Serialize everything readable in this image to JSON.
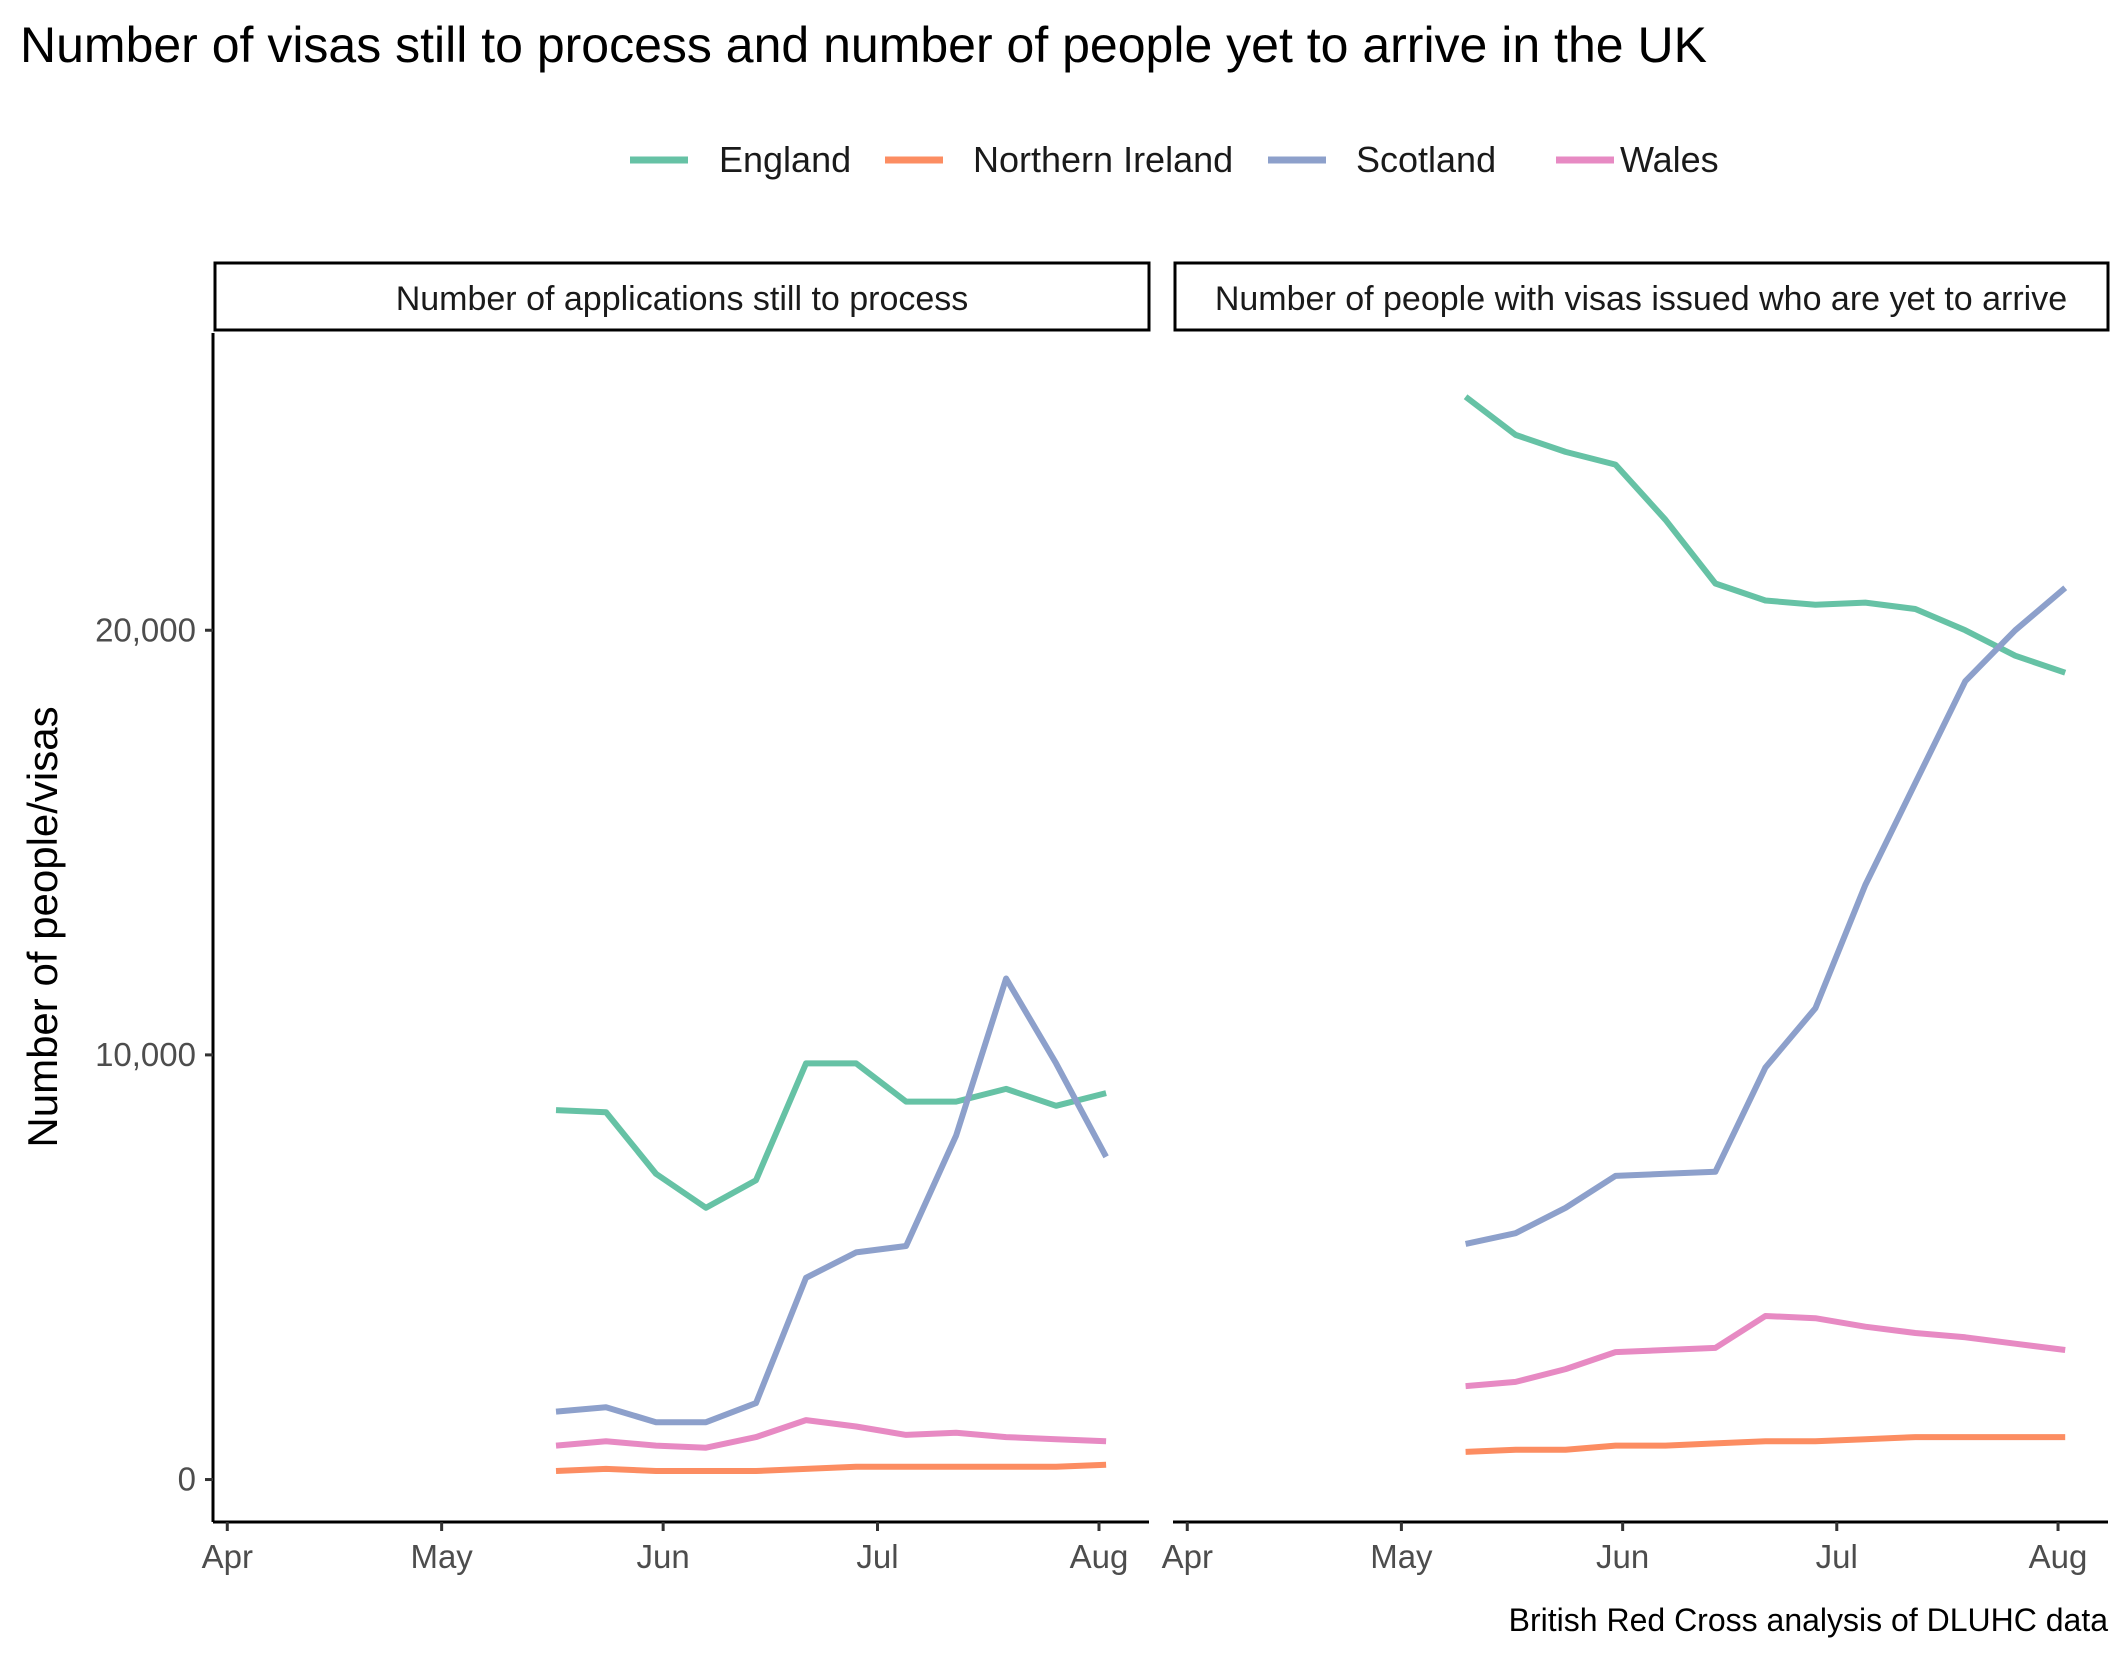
{
  "title": "Number of visas still to process and number of people yet to arrive in the UK",
  "caption": "British Red Cross analysis of DLUHC data",
  "colors": {
    "England": "#66c2a5",
    "Northern Ireland": "#fc8d62",
    "Scotland": "#8da0cb",
    "Wales": "#e78ac3"
  },
  "chart_data": {
    "type": "line",
    "ylabel": "Number of people/visas",
    "xlabel": "",
    "ylim": [
      -1000,
      27000
    ],
    "xlim": [
      "2022-03-30",
      "2022-08-08"
    ],
    "y_ticks": [
      {
        "value": 0,
        "label": "0"
      },
      {
        "value": 10000,
        "label": "10,000"
      },
      {
        "value": 20000,
        "label": "20,000"
      }
    ],
    "x_ticks": [
      {
        "date": "2022-04-01",
        "label": "Apr"
      },
      {
        "date": "2022-05-01",
        "label": "May"
      },
      {
        "date": "2022-06-01",
        "label": "Jun"
      },
      {
        "date": "2022-07-01",
        "label": "Jul"
      },
      {
        "date": "2022-08-01",
        "label": "Aug"
      }
    ],
    "legend": {
      "position": "top",
      "entries": [
        "England",
        "Northern Ireland",
        "Scotland",
        "Wales"
      ]
    },
    "grid": false,
    "panels": [
      {
        "strip": "Number of applications still to process",
        "x": [
          "2022-05-17",
          "2022-05-24",
          "2022-05-31",
          "2022-06-07",
          "2022-06-14",
          "2022-06-21",
          "2022-06-28",
          "2022-07-05",
          "2022-07-12",
          "2022-07-19",
          "2022-07-26",
          "2022-08-02"
        ],
        "series": [
          {
            "name": "England",
            "values": [
              8700,
              8650,
              7200,
              6400,
              7050,
              9800,
              9800,
              8900,
              8900,
              9200,
              8800,
              9100
            ]
          },
          {
            "name": "Northern Ireland",
            "values": [
              200,
              250,
              200,
              200,
              200,
              250,
              300,
              300,
              300,
              300,
              300,
              350
            ]
          },
          {
            "name": "Scotland",
            "values": [
              1600,
              1700,
              1350,
              1350,
              1800,
              4750,
              5350,
              5500,
              8100,
              11800,
              9800,
              7600
            ]
          },
          {
            "name": "Wales",
            "values": [
              800,
              900,
              800,
              750,
              1000,
              1400,
              1250,
              1050,
              1100,
              1000,
              950,
              900
            ]
          }
        ]
      },
      {
        "strip": "Number of people with visas issued who are yet to arrive",
        "x": [
          "2022-05-10",
          "2022-05-17",
          "2022-05-24",
          "2022-05-31",
          "2022-06-07",
          "2022-06-14",
          "2022-06-21",
          "2022-06-28",
          "2022-07-05",
          "2022-07-12",
          "2022-07-19",
          "2022-07-26",
          "2022-08-02"
        ],
        "series": [
          {
            "name": "England",
            "values": [
              25500,
              24600,
              24200,
              23900,
              22600,
              21100,
              20700,
              20600,
              20650,
              20500,
              20000,
              19400,
              19000
            ]
          },
          {
            "name": "Northern Ireland",
            "values": [
              650,
              700,
              700,
              800,
              800,
              850,
              900,
              900,
              950,
              1000,
              1000,
              1000,
              1000
            ]
          },
          {
            "name": "Scotland",
            "values": [
              5550,
              5800,
              6400,
              7150,
              7200,
              7250,
              9700,
              11100,
              14000,
              16400,
              18800,
              20000,
              21000
            ]
          },
          {
            "name": "Wales",
            "values": [
              2200,
              2300,
              2600,
              3000,
              3050,
              3100,
              3850,
              3800,
              3600,
              3450,
              3350,
              3200,
              3050
            ]
          }
        ]
      }
    ]
  }
}
